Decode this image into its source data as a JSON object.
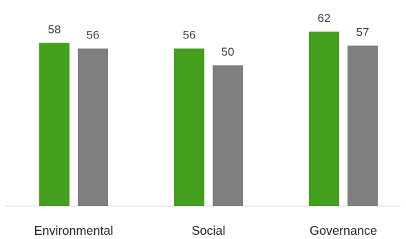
{
  "chart_data": {
    "type": "bar",
    "categories": [
      "Environmental",
      "Social",
      "Governance"
    ],
    "series": [
      {
        "values": [
          58,
          56,
          62
        ],
        "color": "#44a01c"
      },
      {
        "values": [
          56,
          50,
          57
        ],
        "color": "#7f7f7f"
      }
    ],
    "title": "",
    "xlabel": "",
    "ylabel": "",
    "ylim": [
      0,
      70
    ],
    "grid": false,
    "data_labels": true,
    "axis_color": "#d9d9d9"
  }
}
